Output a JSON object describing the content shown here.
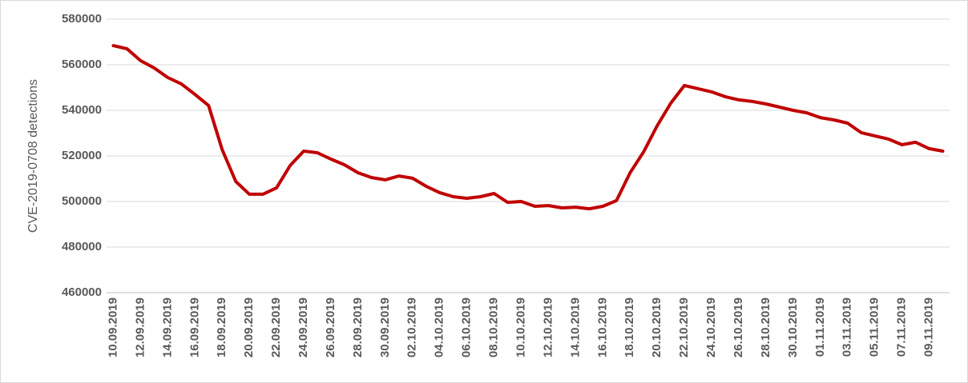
{
  "chart_data": {
    "type": "line",
    "y_label": "CVE-2019-0708 detections",
    "categories": [
      "10.09.2019",
      null,
      "12.09.2019",
      null,
      "14.09.2019",
      null,
      "16.09.2019",
      null,
      "18.09.2019",
      null,
      "20.09.2019",
      null,
      "22.09.2019",
      null,
      "24.09.2019",
      null,
      "26.09.2019",
      null,
      "28.09.2019",
      null,
      "30.09.2019",
      null,
      "02.10.2019",
      null,
      "04.10.2019",
      null,
      "06.10.2019",
      null,
      "08.10.2019",
      null,
      "10.10.2019",
      null,
      "12.10.2019",
      null,
      "14.10.2019",
      null,
      "16.10.2019",
      null,
      "18.10.2019",
      null,
      "20.10.2019",
      null,
      "22.10.2019",
      null,
      "24.10.2019",
      null,
      "26.10.2019",
      null,
      "28.10.2019",
      null,
      "30.10.2019",
      null,
      "01.11.2019",
      null,
      "03.11.2019",
      null,
      "05.11.2019",
      null,
      "07.11.2019",
      null,
      "09.11.2019",
      null
    ],
    "values": [
      568400,
      567000,
      561800,
      558600,
      554400,
      551600,
      547000,
      542100,
      522800,
      508800,
      503200,
      503200,
      506000,
      515800,
      522100,
      521400,
      518600,
      516100,
      512600,
      510500,
      509500,
      511200,
      510200,
      506700,
      503900,
      502100,
      501400,
      502100,
      503500,
      499600,
      500000,
      497900,
      498200,
      497200,
      497500,
      496800,
      497900,
      500400,
      512600,
      521800,
      533300,
      543200,
      550900,
      549500,
      548100,
      546000,
      544600,
      543900,
      542800,
      541400,
      540000,
      538900,
      536800,
      535800,
      534400,
      530200,
      528800,
      527400,
      524900,
      526000,
      523200,
      522100
    ],
    "color": "#c00000",
    "ylim": [
      460000,
      580000
    ],
    "yticks": [
      460000,
      480000,
      500000,
      520000,
      540000,
      560000,
      580000
    ],
    "grid": true
  }
}
